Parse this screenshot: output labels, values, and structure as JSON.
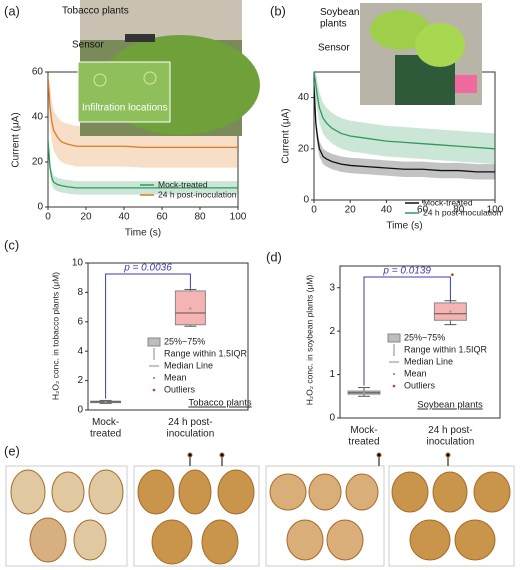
{
  "chart_data": [
    {
      "type": "line",
      "label": "(a)",
      "xlabel": "Time (s)",
      "ylabel": "Current (μA)",
      "xlim": [
        0,
        100
      ],
      "ylim": [
        0,
        60
      ],
      "xticks": [
        0,
        20,
        40,
        60,
        80,
        100
      ],
      "yticks": [
        0,
        20,
        40,
        60
      ],
      "annotations": [
        "Tobacco plants",
        "Sensor",
        "Infiltration locations"
      ],
      "x": [
        0,
        1,
        2,
        3,
        5,
        7,
        10,
        15,
        20,
        30,
        40,
        50,
        60,
        70,
        80,
        90,
        100
      ],
      "series": [
        {
          "name": "Mock-treated",
          "color": "#2e9a5a",
          "values": [
            30,
            18,
            13,
            11,
            10,
            9.5,
            9,
            8.5,
            8.5,
            8.5,
            8.5,
            8.5,
            8.5,
            8.5,
            8.5,
            8.5,
            8.5
          ],
          "lower": [
            26,
            15,
            10,
            8,
            7,
            6.5,
            6,
            5.5,
            5.5,
            5.5,
            5.5,
            5.5,
            5.5,
            5.5,
            5.5,
            5.5,
            5.5
          ],
          "upper": [
            34,
            21,
            16,
            14,
            13,
            12.5,
            12,
            11.5,
            11.5,
            11.5,
            11.5,
            11.5,
            11.5,
            11.5,
            11.5,
            11.5,
            11.5
          ]
        },
        {
          "name": "24 h post-inoculation",
          "color": "#e07a20",
          "values": [
            58,
            45,
            38,
            34,
            31,
            29,
            28,
            27,
            27,
            27,
            27,
            26.5,
            26.5,
            26.5,
            26.5,
            26.5,
            26.5
          ],
          "lower": [
            50,
            36,
            29,
            25,
            22,
            20,
            19,
            18,
            18,
            18,
            18,
            17.5,
            17.5,
            17.5,
            17.5,
            17.5,
            17.5
          ],
          "upper": [
            60,
            54,
            47,
            43,
            40,
            38,
            37,
            36,
            36,
            36,
            36,
            35.5,
            35.5,
            35.5,
            35.5,
            35.5,
            35.5
          ]
        }
      ]
    },
    {
      "type": "line",
      "label": "(b)",
      "xlabel": "Time (s)",
      "ylabel": "Current (μA)",
      "xlim": [
        0,
        100
      ],
      "ylim": [
        0,
        50
      ],
      "xticks": [
        0,
        20,
        40,
        60,
        80,
        100
      ],
      "yticks": [
        0,
        20,
        40
      ],
      "annotations": [
        "Soybean\nplants",
        "Sensor"
      ],
      "x": [
        0,
        1,
        2,
        3,
        5,
        7,
        10,
        15,
        20,
        30,
        40,
        50,
        60,
        70,
        80,
        90,
        100
      ],
      "series": [
        {
          "name": "Mock-treated",
          "color": "#111111",
          "values": [
            45,
            30,
            24,
            20,
            17,
            16,
            15,
            14,
            13.5,
            13,
            12.5,
            12,
            12,
            11.5,
            11.5,
            11,
            11
          ],
          "lower": [
            42,
            27,
            21,
            17,
            14,
            13,
            12,
            11,
            10.5,
            10,
            9.5,
            9,
            9,
            8.5,
            8.5,
            8,
            8
          ],
          "upper": [
            48,
            33,
            27,
            23,
            20,
            19,
            18,
            17,
            16.5,
            16,
            15.5,
            15,
            15,
            14.5,
            14.5,
            14,
            14
          ]
        },
        {
          "name": "24 h post-inoculation",
          "color": "#2e9a5a",
          "values": [
            50,
            45,
            40,
            36,
            32,
            30,
            28,
            26,
            25,
            24,
            23,
            22.5,
            22,
            21.5,
            21,
            20.5,
            20
          ],
          "lower": [
            44,
            39,
            34,
            30,
            26,
            24,
            22,
            20,
            19,
            18,
            17,
            16.5,
            16,
            15.5,
            15,
            14.5,
            14
          ],
          "upper": [
            50,
            50,
            46,
            42,
            38,
            36,
            34,
            32,
            31,
            30,
            29,
            28.5,
            28,
            27.5,
            27,
            26.5,
            26
          ]
        }
      ]
    },
    {
      "type": "box",
      "label": "(c)",
      "ylabel": "H₂O₂ conc. in tobacco plants (μM)",
      "ylim": [
        0,
        10
      ],
      "yticks": [
        0,
        2,
        4,
        6,
        8,
        10
      ],
      "categories": [
        "Mock-\ntreated",
        "24 h post-\ninoculation"
      ],
      "colors": [
        "#bdbdbd",
        "#f6b3b3"
      ],
      "boxes": [
        {
          "min": 0.45,
          "q1": 0.5,
          "median": 0.55,
          "q3": 0.6,
          "max": 0.65,
          "mean": 0.55,
          "outliers": []
        },
        {
          "min": 5.7,
          "q1": 5.8,
          "median": 6.6,
          "q3": 8.1,
          "max": 8.2,
          "mean": 6.9,
          "outliers": []
        }
      ],
      "p_value": "p = 0.0036",
      "legend": [
        "25%~75%",
        "Range within 1.5IQR",
        "Median Line",
        "Mean",
        "Outliers"
      ],
      "note": "Tobacco plants"
    },
    {
      "type": "box",
      "label": "(d)",
      "ylabel": "H₂O₂ conc. in soybean plants (μM)",
      "ylim": [
        0,
        3.5
      ],
      "yticks": [
        0,
        1,
        2,
        3
      ],
      "categories": [
        "Mock-\ntreated",
        "24 h post-\ninoculation"
      ],
      "colors": [
        "#bdbdbd",
        "#f6b3b3"
      ],
      "boxes": [
        {
          "min": 0.5,
          "q1": 0.55,
          "median": 0.58,
          "q3": 0.62,
          "max": 0.7,
          "mean": 0.58,
          "outliers": []
        },
        {
          "min": 2.15,
          "q1": 2.25,
          "median": 2.4,
          "q3": 2.65,
          "max": 2.7,
          "mean": 2.45,
          "outliers": [
            3.3
          ]
        }
      ],
      "p_value": "p = 0.0139",
      "legend": [
        "25%~75%",
        "Range within 1.5IQR",
        "Median Line",
        "Mean",
        "Outliers"
      ],
      "note": "Soybean plants"
    }
  ],
  "panel_e": {
    "label": "(e)"
  }
}
